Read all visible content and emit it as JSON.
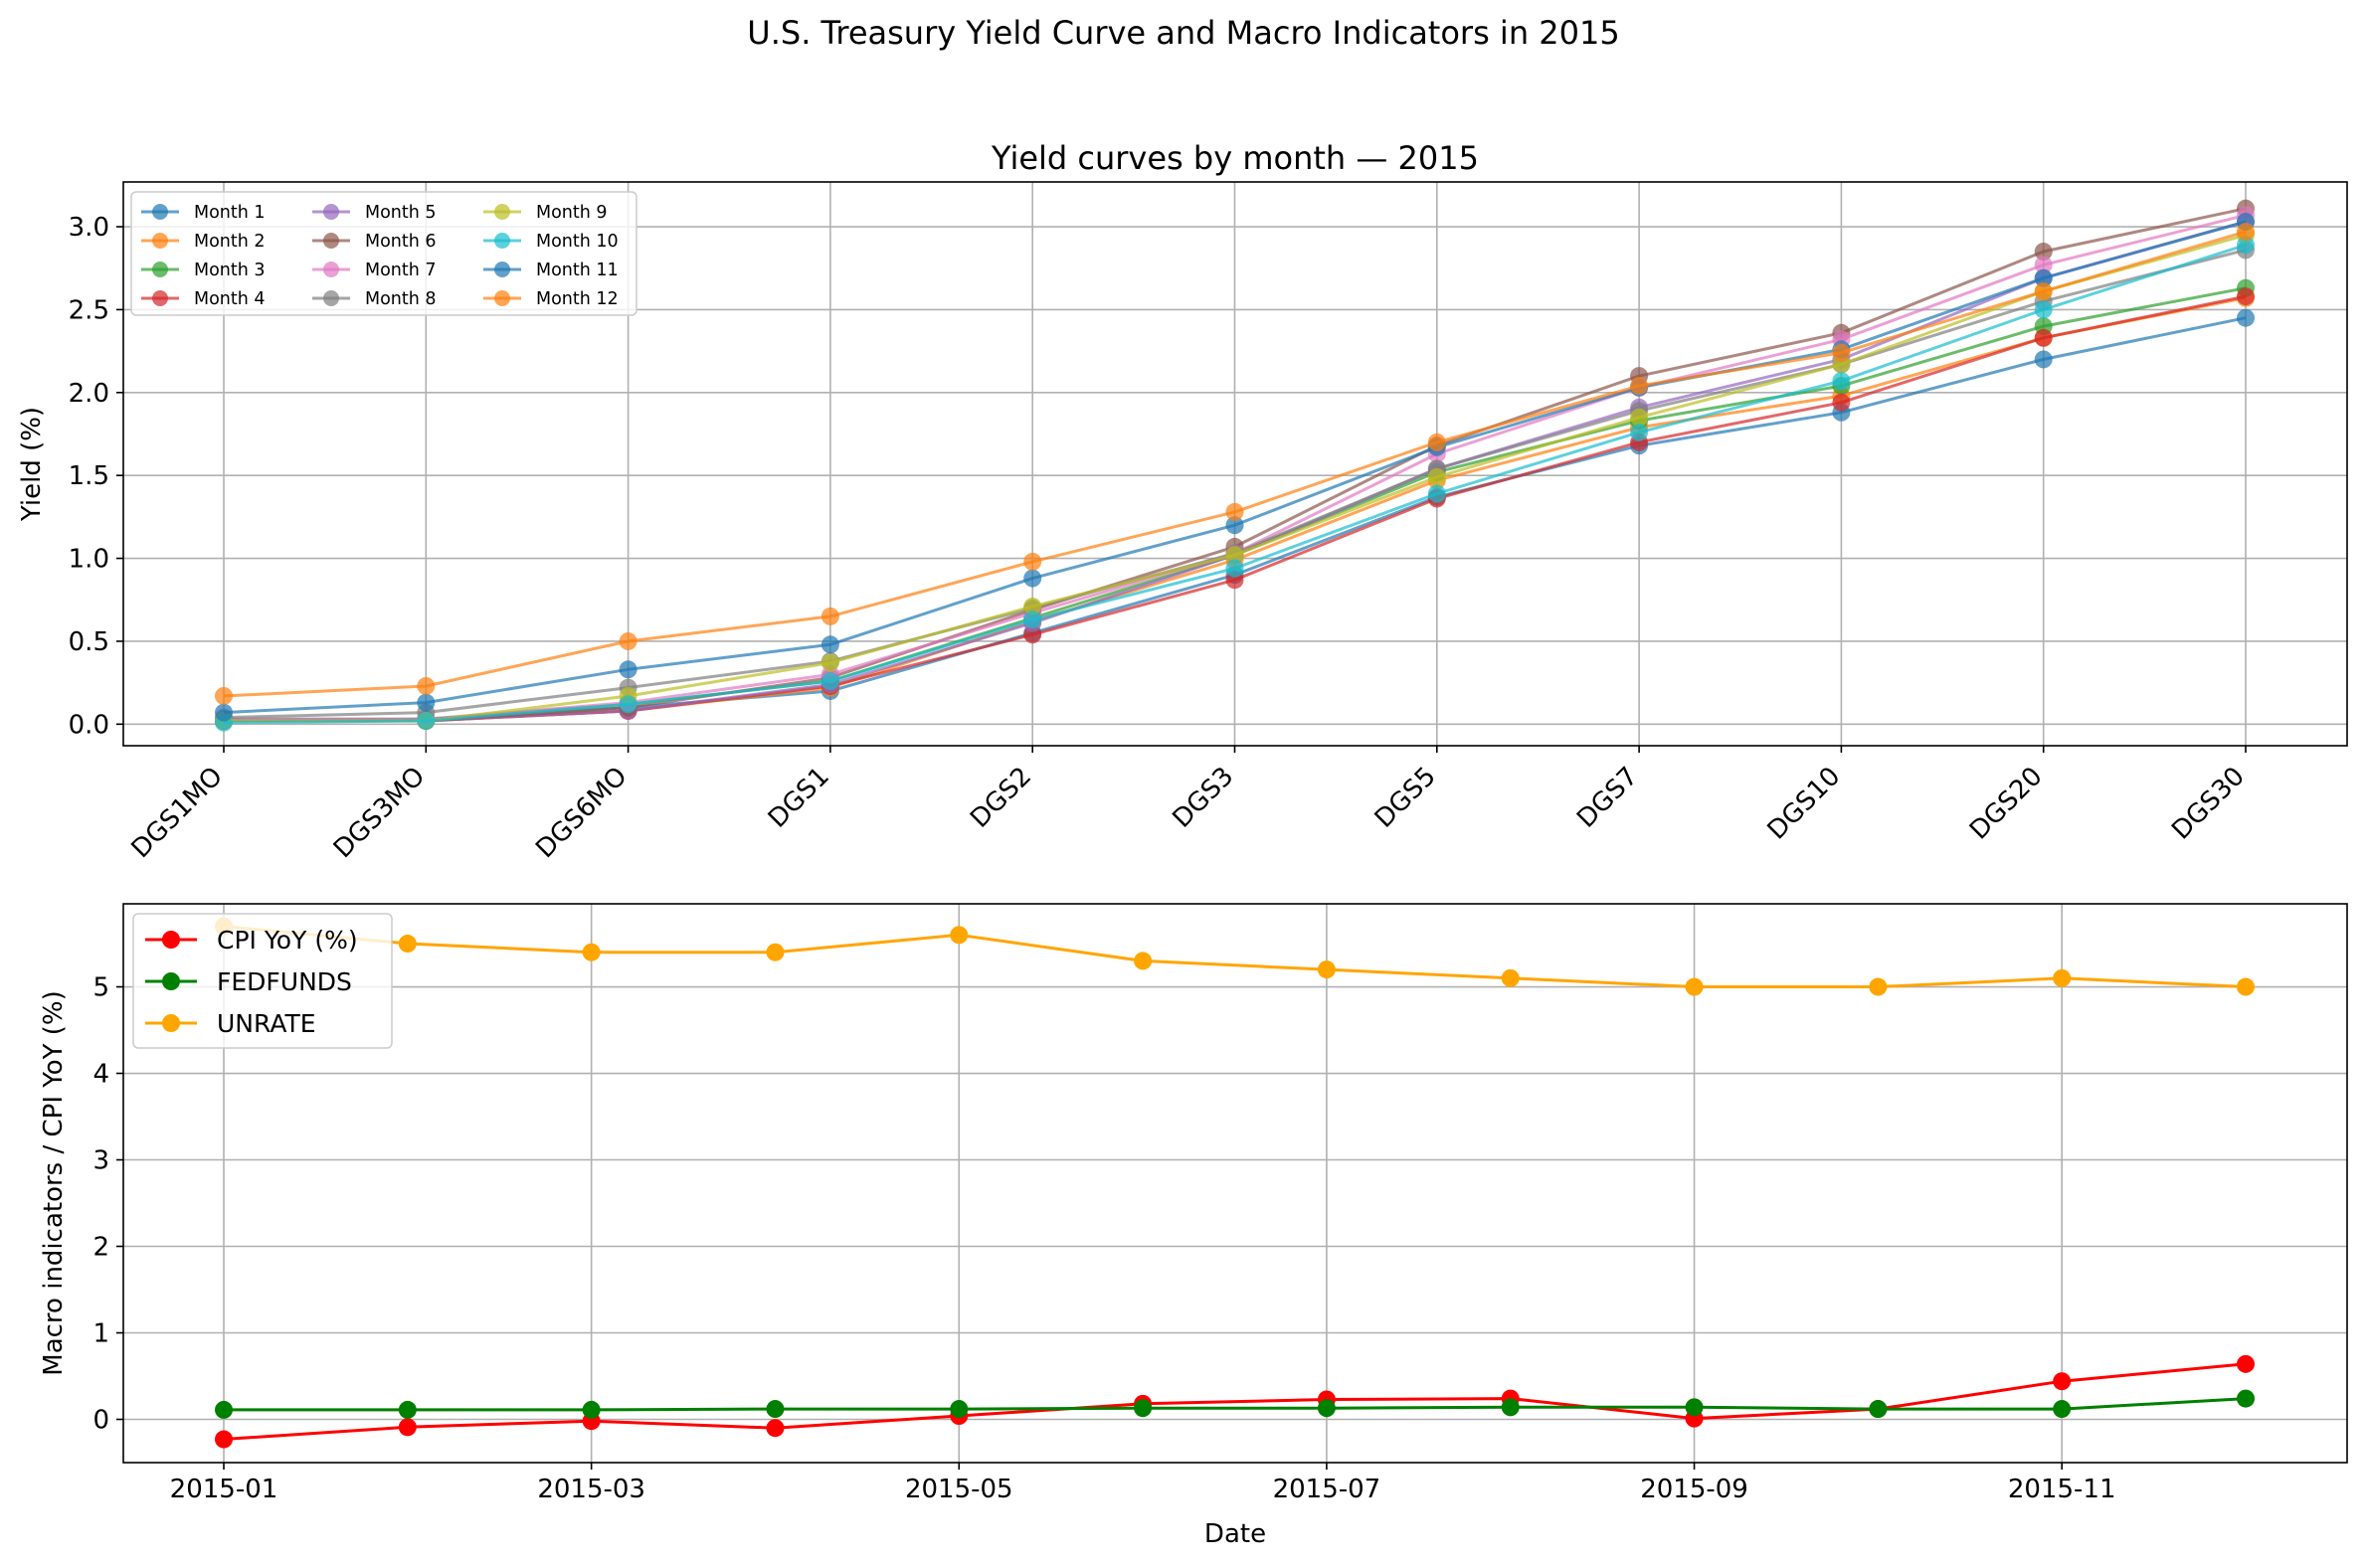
{
  "figure": {
    "suptitle": "U.S. Treasury Yield Curve and Macro Indicators in 2015"
  },
  "colors": {
    "tab": [
      "#1f77b4",
      "#ff7f0e",
      "#2ca02c",
      "#d62728",
      "#9467bd",
      "#8c564b",
      "#e377c2",
      "#7f7f7f",
      "#bcbd22",
      "#17becf"
    ],
    "cpi": "#ff0000",
    "fedfunds": "#008000",
    "unrate": "#ffa500",
    "grid": "#b0b0b0"
  },
  "chart_data": [
    {
      "type": "line",
      "title": "Yield curves by month — 2015",
      "xlabel": "",
      "ylabel": "Yield (%)",
      "ylim": [
        -0.13,
        3.27
      ],
      "yticks": [
        "0.0",
        "0.5",
        "1.0",
        "1.5",
        "2.0",
        "2.5",
        "3.0"
      ],
      "grid": true,
      "legend": "top-left",
      "categories": [
        "DGS1MO",
        "DGS3MO",
        "DGS6MO",
        "DGS1",
        "DGS2",
        "DGS3",
        "DGS5",
        "DGS7",
        "DGS10",
        "DGS20",
        "DGS30"
      ],
      "series": [
        {
          "name": "Month 1",
          "values": [
            0.03,
            0.03,
            0.1,
            0.2,
            0.55,
            0.9,
            1.37,
            1.68,
            1.88,
            2.2,
            2.45
          ]
        },
        {
          "name": "Month 2",
          "values": [
            0.02,
            0.02,
            0.08,
            0.22,
            0.62,
            0.99,
            1.47,
            1.79,
            1.98,
            2.33,
            2.57
          ]
        },
        {
          "name": "Month 3",
          "values": [
            0.02,
            0.03,
            0.12,
            0.26,
            0.64,
            1.02,
            1.52,
            1.83,
            2.04,
            2.4,
            2.63
          ]
        },
        {
          "name": "Month 4",
          "values": [
            0.02,
            0.02,
            0.08,
            0.23,
            0.54,
            0.87,
            1.36,
            1.7,
            1.94,
            2.33,
            2.58
          ]
        },
        {
          "name": "Month 5",
          "values": [
            0.02,
            0.02,
            0.08,
            0.24,
            0.61,
            1.02,
            1.54,
            1.91,
            2.2,
            2.69,
            3.03
          ]
        },
        {
          "name": "Month 6",
          "values": [
            0.02,
            0.02,
            0.1,
            0.28,
            0.69,
            1.07,
            1.68,
            2.1,
            2.36,
            2.85,
            3.11
          ]
        },
        {
          "name": "Month 7",
          "values": [
            0.03,
            0.03,
            0.13,
            0.3,
            0.67,
            1.03,
            1.63,
            2.03,
            2.32,
            2.77,
            3.07
          ]
        },
        {
          "name": "Month 8",
          "values": [
            0.04,
            0.07,
            0.22,
            0.38,
            0.7,
            1.03,
            1.54,
            1.89,
            2.17,
            2.55,
            2.86
          ]
        },
        {
          "name": "Month 9",
          "values": [
            0.02,
            0.02,
            0.17,
            0.37,
            0.71,
            1.02,
            1.49,
            1.85,
            2.17,
            2.61,
            2.95
          ]
        },
        {
          "name": "Month 10",
          "values": [
            0.01,
            0.02,
            0.12,
            0.26,
            0.63,
            0.94,
            1.39,
            1.76,
            2.07,
            2.5,
            2.89
          ]
        },
        {
          "name": "Month 11",
          "values": [
            0.07,
            0.13,
            0.33,
            0.48,
            0.88,
            1.2,
            1.67,
            2.03,
            2.26,
            2.69,
            3.03
          ]
        },
        {
          "name": "Month 12",
          "values": [
            0.17,
            0.23,
            0.5,
            0.65,
            0.98,
            1.28,
            1.7,
            2.04,
            2.24,
            2.61,
            2.97
          ]
        }
      ]
    },
    {
      "type": "line",
      "title": "",
      "xlabel": "Date",
      "ylabel": "Macro indicators / CPI YoY (%)",
      "ylim": [
        -0.5,
        5.96
      ],
      "yticks": [
        "0",
        "1",
        "2",
        "3",
        "4",
        "5"
      ],
      "grid": true,
      "legend": "top-left",
      "x": [
        "2015-01",
        "2015-02",
        "2015-03",
        "2015-04",
        "2015-05",
        "2015-06",
        "2015-07",
        "2015-08",
        "2015-09",
        "2015-10",
        "2015-11",
        "2015-12"
      ],
      "xticks": [
        "2015-01",
        "2015-03",
        "2015-05",
        "2015-07",
        "2015-09",
        "2015-11"
      ],
      "series": [
        {
          "name": "CPI YoY (%)",
          "values": [
            -0.23,
            -0.09,
            -0.02,
            -0.1,
            0.04,
            0.18,
            0.23,
            0.24,
            0.01,
            0.12,
            0.44,
            0.64
          ]
        },
        {
          "name": "FEDFUNDS",
          "values": [
            0.11,
            0.11,
            0.11,
            0.12,
            0.12,
            0.13,
            0.13,
            0.14,
            0.14,
            0.12,
            0.12,
            0.24
          ]
        },
        {
          "name": "UNRATE",
          "values": [
            5.7,
            5.5,
            5.4,
            5.4,
            5.6,
            5.3,
            5.2,
            5.1,
            5.0,
            5.0,
            5.1,
            5.0
          ]
        }
      ]
    }
  ]
}
